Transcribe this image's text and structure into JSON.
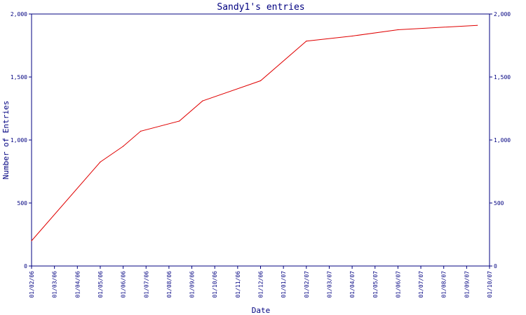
{
  "chart_data": {
    "type": "line",
    "title": "Sandy1's entries",
    "xlabel": "Date",
    "ylabel": "Number of Entries",
    "grid": false,
    "ylim": [
      0,
      2000
    ],
    "y_ticks": [
      "0",
      "500",
      "1,000",
      "1,500",
      "2,000"
    ],
    "x_ticks": [
      "01/02/06",
      "01/03/06",
      "01/04/06",
      "01/05/06",
      "01/06/06",
      "01/07/06",
      "01/08/06",
      "01/09/06",
      "01/10/06",
      "01/11/06",
      "01/12/06",
      "01/01/07",
      "01/02/07",
      "01/03/07",
      "01/04/07",
      "01/05/07",
      "01/06/07",
      "01/07/07",
      "01/08/07",
      "01/09/07",
      "01/10/07"
    ],
    "series": [
      {
        "color": "#e00000",
        "points": [
          [
            "2006-02-01",
            200
          ],
          [
            "2006-05-01",
            825
          ],
          [
            "2006-06-01",
            950
          ],
          [
            "2006-06-24",
            1070
          ],
          [
            "2006-08-15",
            1150
          ],
          [
            "2006-09-15",
            1310
          ],
          [
            "2006-12-01",
            1470
          ],
          [
            "2007-02-01",
            1785
          ],
          [
            "2007-04-01",
            1825
          ],
          [
            "2007-06-01",
            1875
          ],
          [
            "2007-09-15",
            1910
          ]
        ]
      }
    ],
    "colors": {
      "axis": "#000080",
      "text": "#000080"
    }
  }
}
